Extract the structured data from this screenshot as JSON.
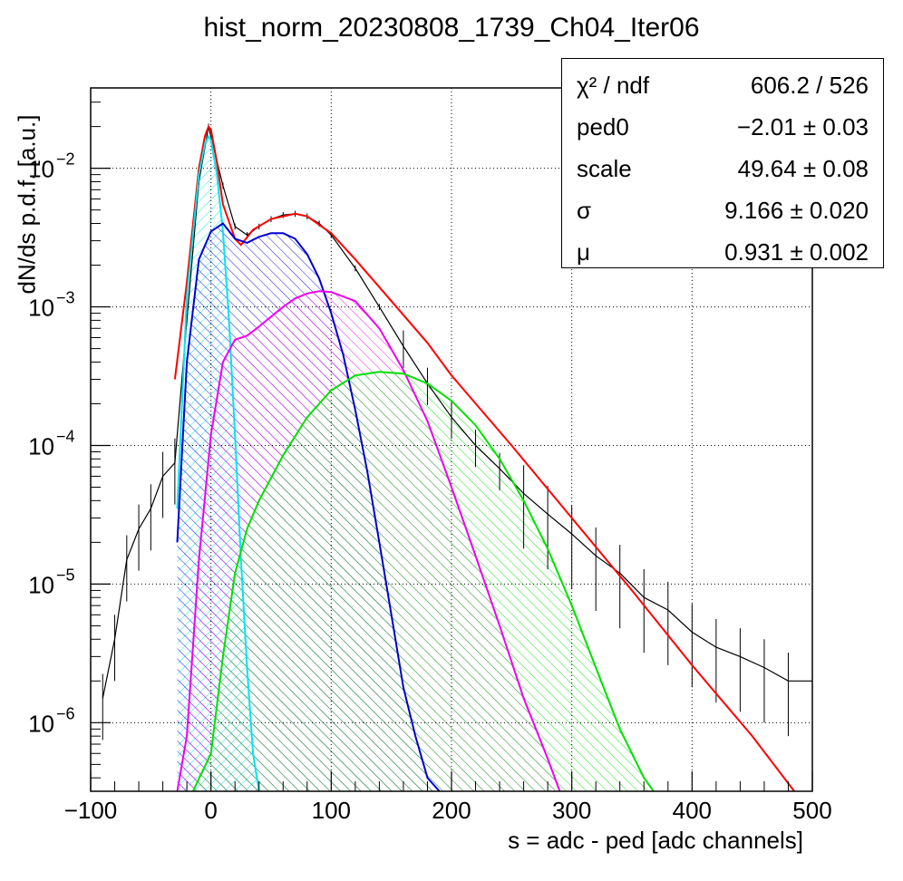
{
  "chart_data": {
    "type": "line",
    "title": "hist_norm_20230808_1739_Ch04_Iter06",
    "xlabel": "s = adc - ped [adc channels]",
    "ylabel": "dN/ds p.d.f. [a.u.]",
    "xlim": [
      -100,
      500
    ],
    "ylim": [
      3.2e-07,
      0.038
    ],
    "yscale": "log",
    "grid": true,
    "x_ticks": [
      {
        "value": -100,
        "label": "−100"
      },
      {
        "value": 0,
        "label": "0"
      },
      {
        "value": 100,
        "label": "100"
      },
      {
        "value": 200,
        "label": "200"
      },
      {
        "value": 300,
        "label": "300"
      },
      {
        "value": 400,
        "label": "400"
      },
      {
        "value": 500,
        "label": "500"
      }
    ],
    "y_ticks": [
      {
        "value": 0.01,
        "base": "10",
        "exp": "−2"
      },
      {
        "value": 0.001,
        "base": "10",
        "exp": "−3"
      },
      {
        "value": 0.0001,
        "base": "10",
        "exp": "−4"
      },
      {
        "value": 1e-05,
        "base": "10",
        "exp": "−5"
      },
      {
        "value": 1e-06,
        "base": "10",
        "exp": "−6"
      }
    ],
    "stats": [
      {
        "name": "χ² / ndf",
        "value": "606.2 / 526"
      },
      {
        "name": "ped0",
        "value": "−2.01 ± 0.03"
      },
      {
        "name": "scale",
        "value": "49.64 ± 0.08"
      },
      {
        "name": "σ",
        "value": "9.166 ± 0.020"
      },
      {
        "name": "μ",
        "value": "0.931 ± 0.002"
      }
    ],
    "series": [
      {
        "role": "data-histogram",
        "color": "#000000",
        "x": [
          -90,
          -80,
          -70,
          -60,
          -50,
          -40,
          -30,
          -20,
          -10,
          -2,
          10,
          20,
          30,
          40,
          50,
          60,
          70,
          80,
          90,
          100,
          120,
          140,
          160,
          180,
          200,
          220,
          240,
          260,
          280,
          300,
          320,
          340,
          360,
          380,
          400,
          420,
          440,
          460,
          480,
          500
        ],
        "y": [
          1.5e-06,
          4e-06,
          1.5e-05,
          2.5e-05,
          3.5e-05,
          6e-05,
          7.5e-05,
          0.0008,
          0.008,
          0.02,
          0.0075,
          0.0038,
          0.0033,
          0.0038,
          0.0043,
          0.0046,
          0.0047,
          0.0045,
          0.004,
          0.0033,
          0.0019,
          0.001,
          0.00052,
          0.00028,
          0.00016,
          0.0001,
          6.8e-05,
          4.5e-05,
          3.2e-05,
          2.3e-05,
          1.6e-05,
          1.2e-05,
          8e-06,
          6.5e-06,
          4.5e-06,
          3.5e-06,
          3e-06,
          2.5e-06,
          2e-06,
          2e-06
        ]
      },
      {
        "role": "total-fit",
        "color": "#ff0000",
        "x": [
          -30,
          -20,
          -10,
          -5,
          -2,
          0,
          5,
          10,
          20,
          25,
          35,
          50,
          70,
          80,
          100,
          120,
          150,
          180,
          200,
          250,
          300,
          350,
          400,
          450,
          485
        ],
        "y": [
          0.0003,
          0.0015,
          0.01,
          0.017,
          0.02,
          0.019,
          0.011,
          0.0055,
          0.0031,
          0.0028,
          0.0036,
          0.0043,
          0.0047,
          0.0045,
          0.0034,
          0.0022,
          0.0011,
          0.00055,
          0.00032,
          0.0001,
          3e-05,
          9e-06,
          2.6e-06,
          8e-07,
          3.2e-07
        ]
      },
      {
        "role": "pedestal-component",
        "color": "#00e5ee",
        "fill": "hatched",
        "x": [
          -28,
          -20,
          -10,
          -5,
          -2,
          0,
          5,
          10,
          15,
          20,
          25,
          30,
          35,
          40
        ],
        "y": [
          3.5e-05,
          0.0012,
          0.009,
          0.015,
          0.017,
          0.016,
          0.009,
          0.0035,
          0.0008,
          0.00012,
          1.5e-05,
          2.5e-06,
          6e-07,
          3.2e-07
        ]
      },
      {
        "role": "1-pe-component",
        "color": "#0000d0",
        "fill": "hatched",
        "x": [
          -28,
          -20,
          -10,
          0,
          10,
          20,
          30,
          40,
          50,
          60,
          70,
          80,
          90,
          100,
          110,
          120,
          130,
          140,
          150,
          160,
          170,
          180,
          190
        ],
        "y": [
          2e-05,
          0.0004,
          0.0022,
          0.0035,
          0.004,
          0.0031,
          0.0029,
          0.0032,
          0.0034,
          0.0034,
          0.0031,
          0.0024,
          0.0016,
          0.0009,
          0.00045,
          0.00018,
          6.5e-05,
          2e-05,
          6e-06,
          1.8e-06,
          8e-07,
          4e-07,
          3.2e-07
        ]
      },
      {
        "role": "2-pe-component",
        "color": "#ee00ee",
        "fill": "hatched",
        "x": [
          -28,
          -20,
          -10,
          0,
          10,
          20,
          30,
          40,
          50,
          60,
          70,
          80,
          90,
          100,
          120,
          140,
          160,
          180,
          200,
          220,
          240,
          260,
          280,
          290
        ],
        "y": [
          3.2e-07,
          8e-07,
          1.5e-05,
          0.00012,
          0.0004,
          0.00058,
          0.00062,
          0.00072,
          0.00085,
          0.001,
          0.00115,
          0.00125,
          0.0013,
          0.00128,
          0.0011,
          0.0007,
          0.00035,
          0.00015,
          5e-05,
          1.6e-05,
          5e-06,
          1.5e-06,
          5.5e-07,
          3.2e-07
        ]
      },
      {
        "role": "3-pe-component",
        "color": "#00e000",
        "fill": "hatched",
        "x": [
          -15,
          0,
          10,
          20,
          30,
          40,
          60,
          80,
          100,
          120,
          140,
          160,
          180,
          200,
          220,
          240,
          260,
          280,
          300,
          320,
          340,
          360,
          368
        ],
        "y": [
          3.2e-07,
          6e-07,
          3e-06,
          1.2e-05,
          2.5e-05,
          4e-05,
          8.5e-05,
          0.00016,
          0.00025,
          0.00032,
          0.00034,
          0.00033,
          0.00028,
          0.00021,
          0.00014,
          8e-05,
          4e-05,
          1.8e-05,
          7e-06,
          2.5e-06,
          9e-07,
          4e-07,
          3.2e-07
        ]
      }
    ]
  }
}
